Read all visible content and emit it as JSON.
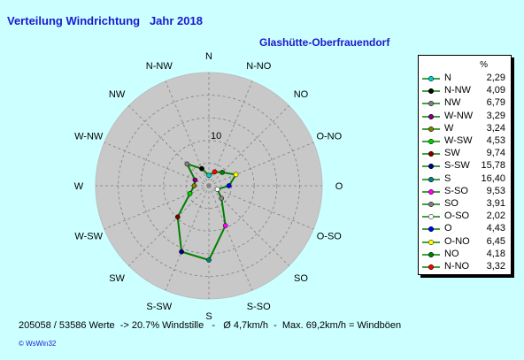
{
  "title": "Verteilung Windrichtung   Jahr 2018",
  "station": "Glashütte-Oberfrauendorf",
  "footer": "205058 / 53586 Werte  -> 20.7% Windstille   -   Ø 4,7km/h  -  Max. 69,2km/h = Windböen",
  "credit": "© WsWin32",
  "legend_header": "%",
  "colors": {
    "background": "#ccffff",
    "plot_disc": "#c8c8c8",
    "series_line": "#008000",
    "text_blue": "#1a1acc"
  },
  "chart_data": {
    "type": "radar",
    "title": "Verteilung Windrichtung   Jahr 2018",
    "subtitle": "Glashütte-Oberfrauendorf",
    "radial_ticks": [
      "10"
    ],
    "radial_max": 25,
    "directions": [
      "N",
      "N-NW",
      "NW",
      "W-NW",
      "W",
      "W-SW",
      "SW",
      "S-SW",
      "S",
      "S-SO",
      "SO",
      "O-SO",
      "O",
      "O-NO",
      "NO",
      "N-NO"
    ],
    "bearings": [
      0,
      337.5,
      315,
      292.5,
      270,
      247.5,
      225,
      202.5,
      180,
      157.5,
      135,
      112.5,
      90,
      67.5,
      45,
      22.5
    ],
    "values": [
      2.29,
      4.09,
      6.79,
      3.29,
      3.24,
      4.53,
      9.74,
      15.78,
      16.4,
      9.53,
      3.91,
      2.02,
      4.43,
      6.45,
      4.18,
      3.32
    ],
    "value_labels": [
      "2,29",
      "4,09",
      "6,79",
      "3,29",
      "3,24",
      "4,53",
      "9,74",
      "15,78",
      "16,40",
      "9,53",
      "3,91",
      "2,02",
      "4,43",
      "6,45",
      "4,18",
      "3,32"
    ],
    "marker_colors": [
      "#00cccc",
      "#000000",
      "#808080",
      "#800080",
      "#808000",
      "#00cc00",
      "#800000",
      "#000080",
      "#008080",
      "#ff00ff",
      "#808080",
      "#ffffff",
      "#0000ff",
      "#ffff00",
      "#008000",
      "#ff0000"
    ]
  }
}
